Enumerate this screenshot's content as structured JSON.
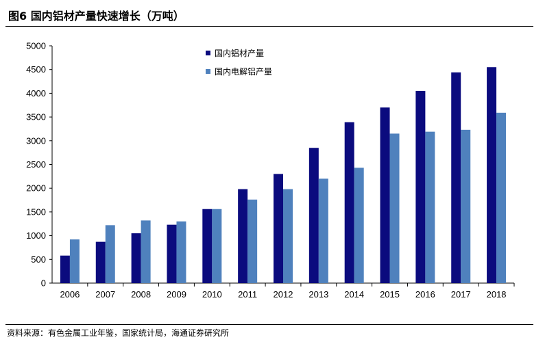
{
  "figure": {
    "title": "图6   国内铝材产量快速增长（万吨）",
    "source": "资料来源：有色金属工业年鉴，国家统计局，海通证券研究所"
  },
  "chart_data": {
    "type": "bar",
    "categories": [
      "2006",
      "2007",
      "2008",
      "2009",
      "2010",
      "2011",
      "2012",
      "2013",
      "2014",
      "2015",
      "2016",
      "2017",
      "2018"
    ],
    "series": [
      {
        "name": "国内铝材产量",
        "color": "#0b0b7e",
        "values": [
          580,
          870,
          1050,
          1230,
          1560,
          1980,
          2300,
          2850,
          3390,
          3700,
          4050,
          4440,
          4550
        ]
      },
      {
        "name": "国内电解铝产量",
        "color": "#4f81bd",
        "values": [
          920,
          1220,
          1320,
          1300,
          1560,
          1760,
          1980,
          2200,
          2430,
          3150,
          3190,
          3230,
          3590
        ]
      }
    ],
    "ylim": [
      0,
      5000
    ],
    "yticks": [
      0,
      500,
      1000,
      1500,
      2000,
      2500,
      3000,
      3500,
      4000,
      4500,
      5000
    ],
    "legend_position": "top-left",
    "grid": false
  }
}
